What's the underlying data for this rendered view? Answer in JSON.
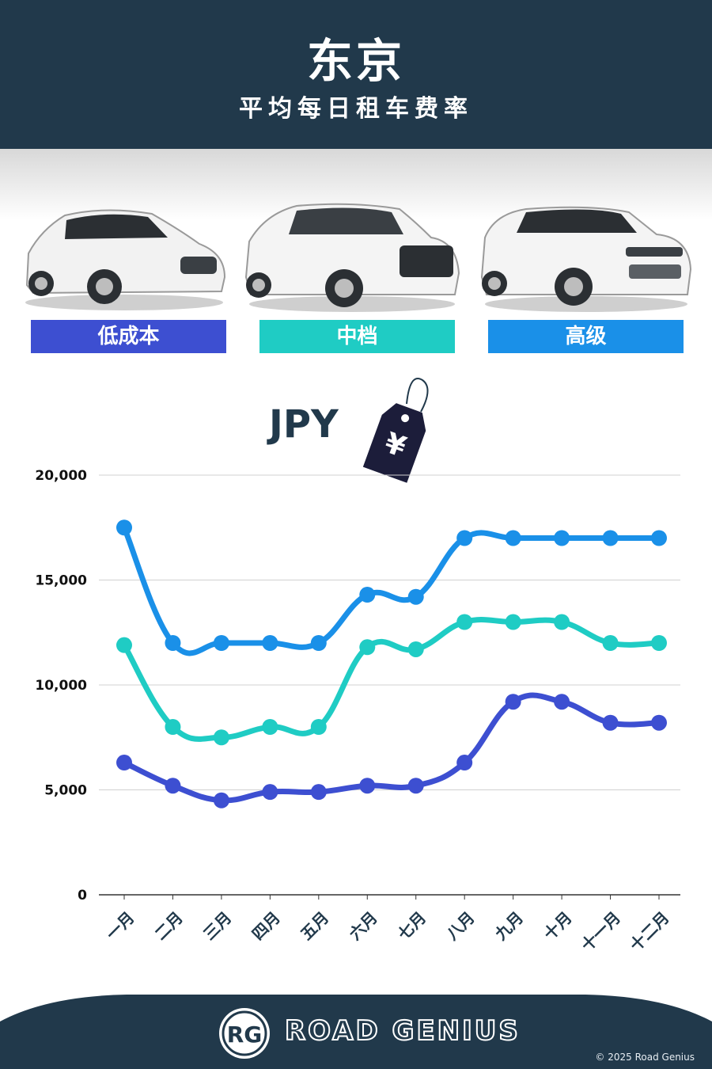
{
  "header": {
    "title": "东京",
    "subtitle": "平均每日租车费率"
  },
  "tiers": [
    {
      "label": "低成本",
      "color": "#3d4fd1"
    },
    {
      "label": "中档",
      "color": "#1fccc4"
    },
    {
      "label": "高级",
      "color": "#1a90e8"
    }
  ],
  "currency": "JPY",
  "currency_symbol": "¥",
  "chart_data": {
    "type": "line",
    "categories": [
      "一月",
      "二月",
      "三月",
      "四月",
      "五月",
      "六月",
      "七月",
      "八月",
      "九月",
      "十月",
      "十一月",
      "十二月"
    ],
    "series": [
      {
        "name": "高级",
        "color": "#1a90e8",
        "values": [
          17500,
          12000,
          12000,
          12000,
          12000,
          14300,
          14200,
          17000,
          17000,
          17000,
          17000,
          17000
        ]
      },
      {
        "name": "中档",
        "color": "#1fccc4",
        "values": [
          11900,
          8000,
          7500,
          8000,
          8000,
          11800,
          11700,
          13000,
          13000,
          13000,
          12000,
          12000
        ]
      },
      {
        "name": "低成本",
        "color": "#3d4fd1",
        "values": [
          6300,
          5200,
          4500,
          4900,
          4900,
          5200,
          5200,
          6300,
          9200,
          9200,
          8200,
          8200
        ]
      }
    ],
    "ylim": [
      0,
      20000
    ],
    "yticks": [
      0,
      5000,
      10000,
      15000,
      20000
    ],
    "ytick_labels": [
      "0",
      "5,000",
      "10,000",
      "15,000",
      "20,000"
    ],
    "grid": true,
    "legend": "top"
  },
  "footer": {
    "brand": "ROAD GENIUS",
    "logo": "RG",
    "copyright": "© 2025 Road Genius"
  }
}
